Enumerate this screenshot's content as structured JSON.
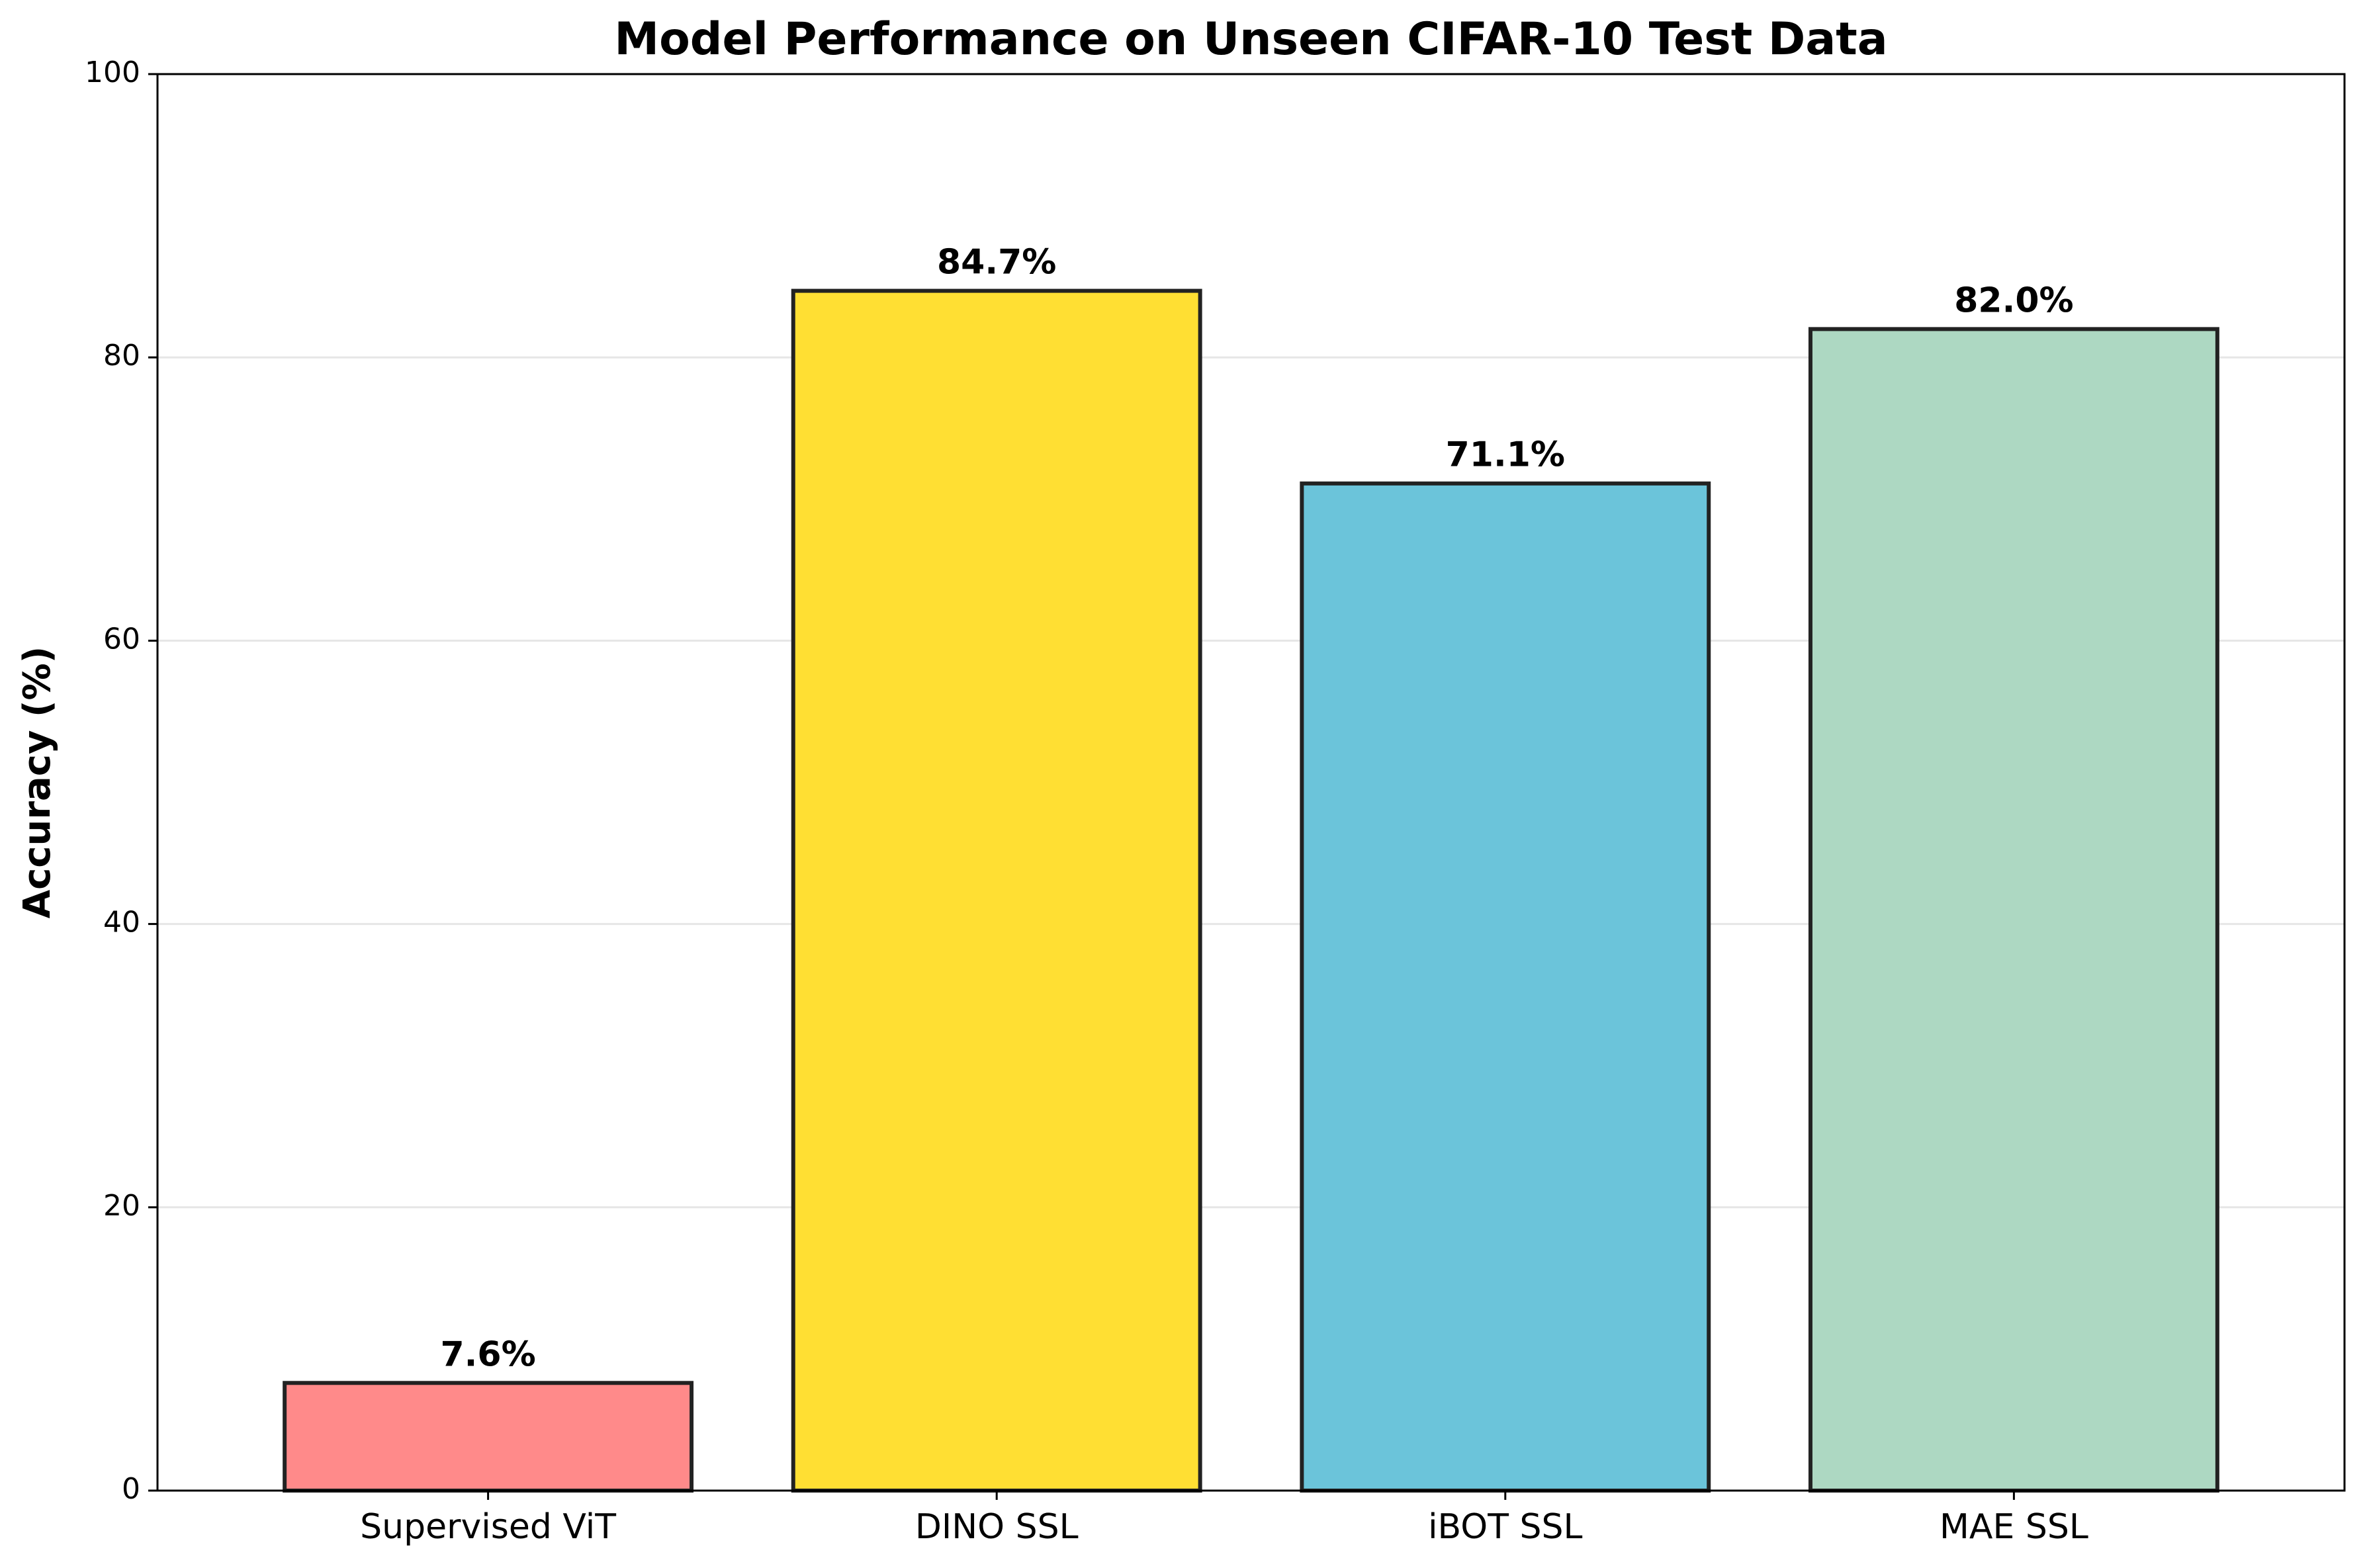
{
  "chart_data": {
    "type": "bar",
    "title": "Model Performance on Unseen CIFAR-10 Test Data",
    "xlabel": "",
    "ylabel": "Accuracy (%)",
    "ylim": [
      0,
      100
    ],
    "yticks": [
      0,
      20,
      40,
      60,
      80,
      100
    ],
    "ytick_labels": [
      "0",
      "20",
      "40",
      "60",
      "80",
      "100"
    ],
    "grid": "horizontal",
    "legend": "none",
    "categories": [
      "Supervised ViT",
      "DINO SSL",
      "iBOT SSL",
      "MAE SSL"
    ],
    "values": [
      7.6,
      84.7,
      71.1,
      82.0
    ],
    "data_labels": [
      "7.6%",
      "84.7%",
      "71.1%",
      "82.0%"
    ],
    "colors": [
      "#FF8A8A",
      "#FFDF33",
      "#6BC4DA",
      "#ADD8C2"
    ],
    "bar_edge_color": "#222222"
  }
}
